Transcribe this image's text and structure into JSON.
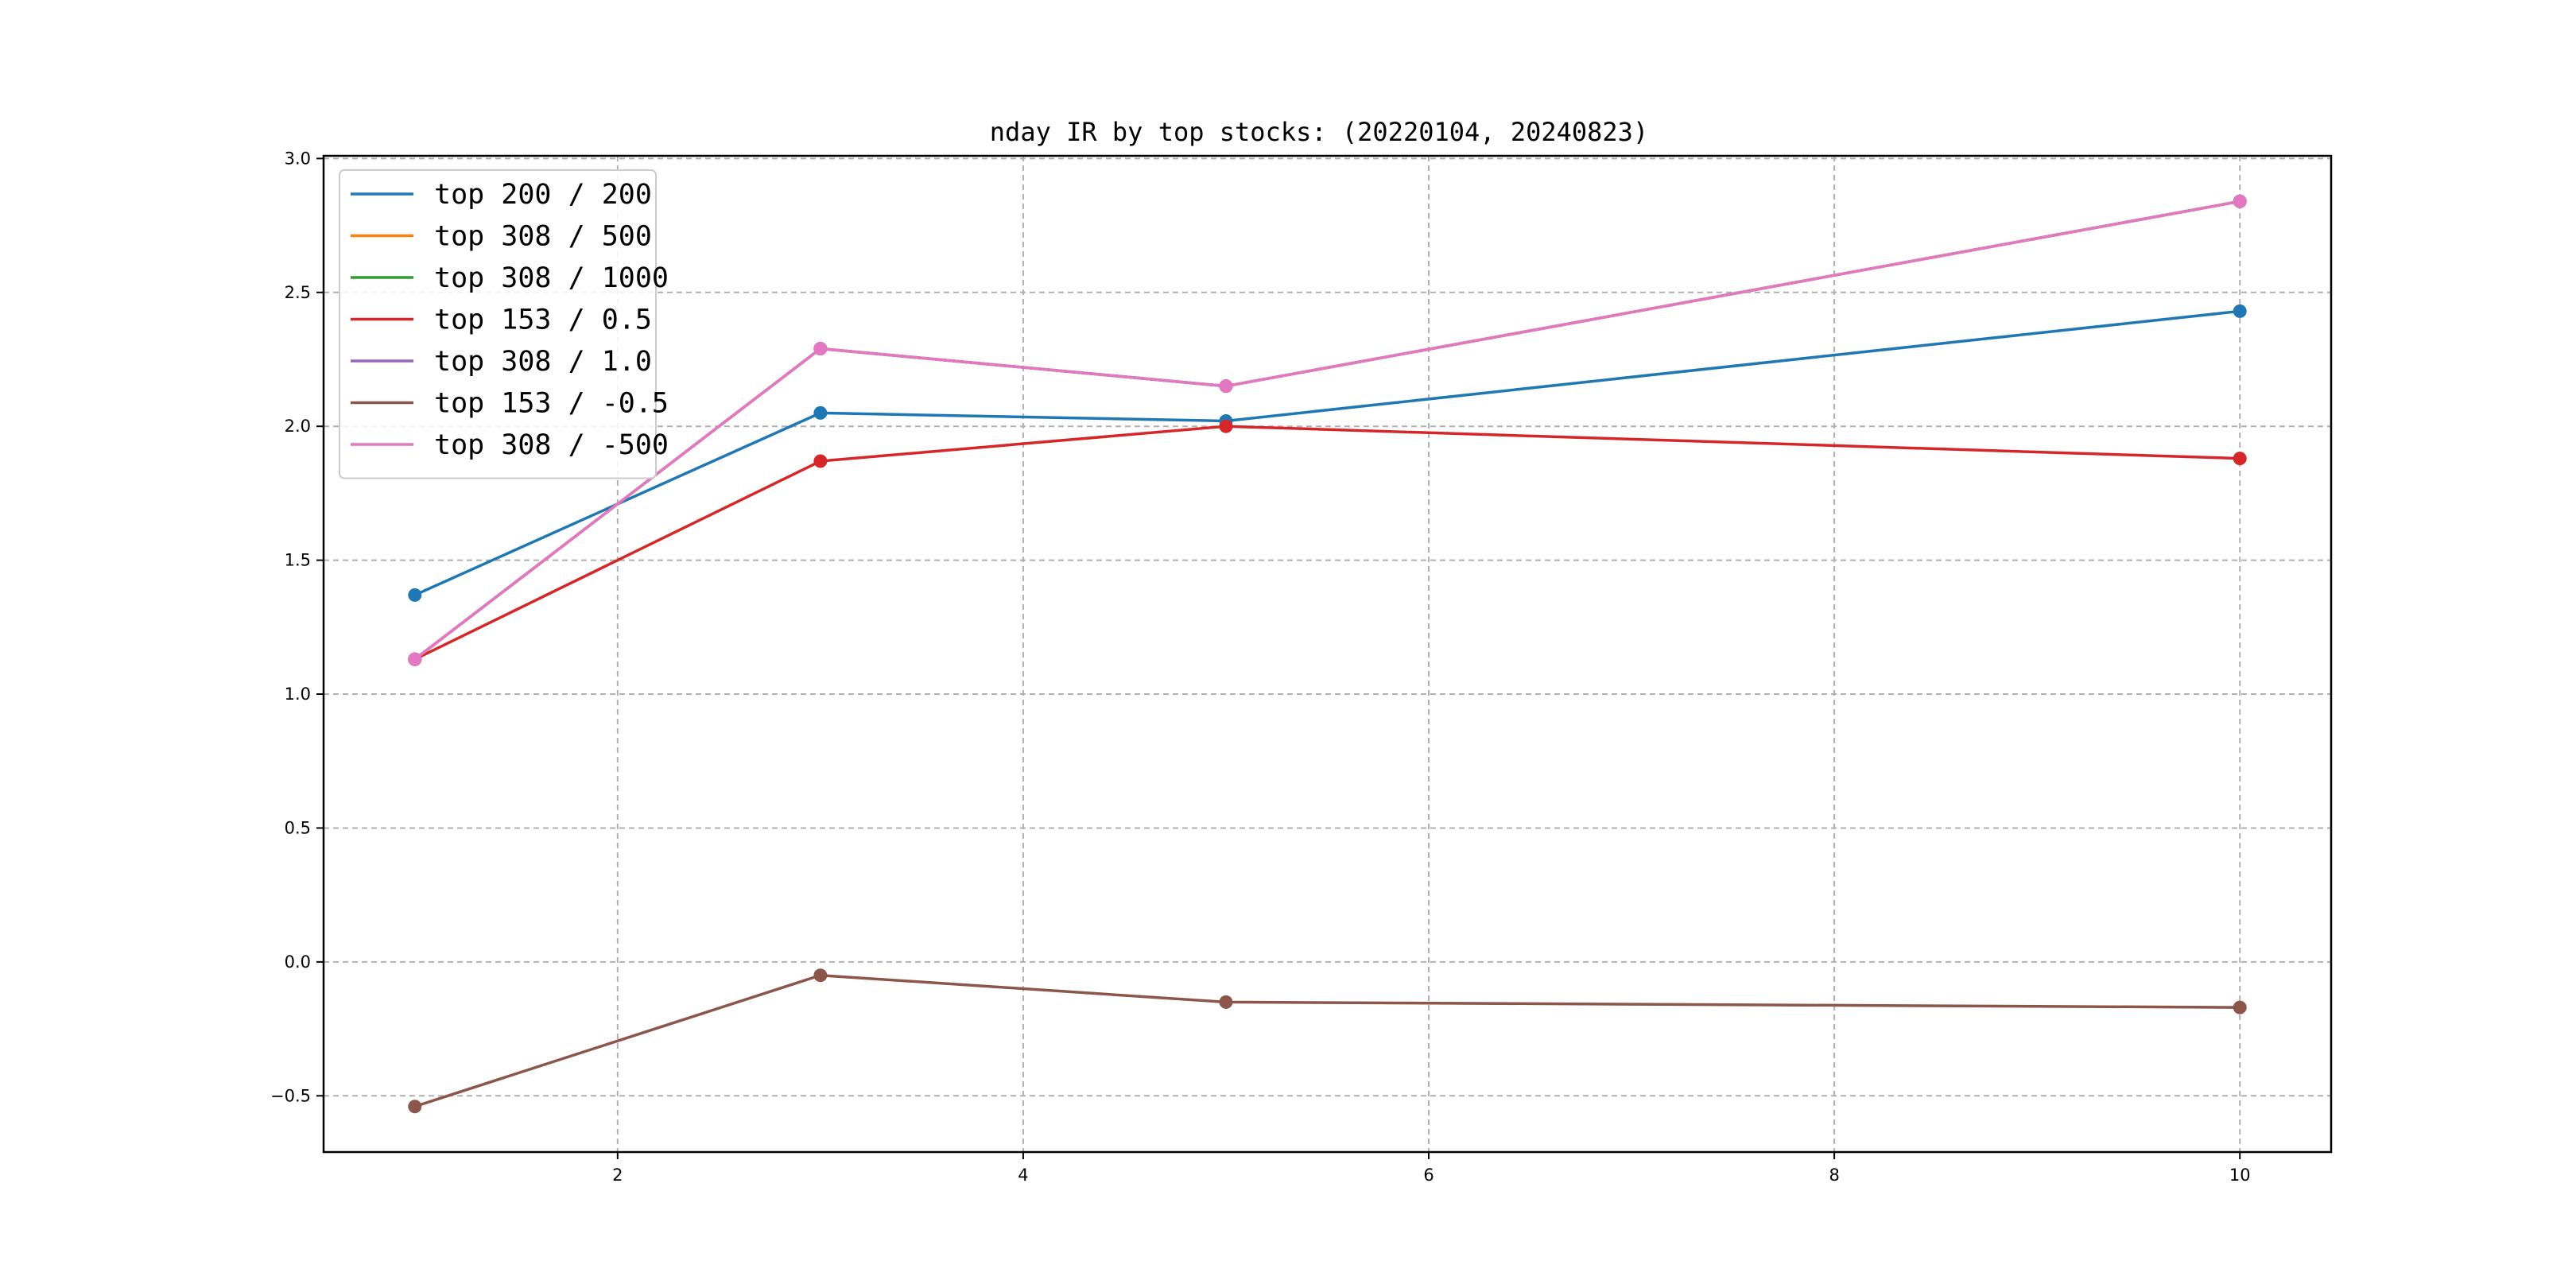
{
  "chart_data": {
    "type": "line",
    "title": "nday IR by top stocks: (20220104, 20240823)",
    "xlabel": "",
    "ylabel": "",
    "x": [
      1,
      3,
      5,
      10
    ],
    "xlim": [
      0.55,
      10.45
    ],
    "ylim": [
      -0.71,
      3.01
    ],
    "xticks": [
      2,
      4,
      6,
      8,
      10
    ],
    "yticks": [
      -0.5,
      0.0,
      0.5,
      1.0,
      1.5,
      2.0,
      2.5,
      3.0
    ],
    "grid": true,
    "legend_position": "top-left",
    "series": [
      {
        "name": "top 200 / 200",
        "color": "#1f77b4",
        "values": [
          1.37,
          2.05,
          2.02,
          2.43
        ]
      },
      {
        "name": "top 308 / 500",
        "color": "#ff7f0e",
        "values": [
          1.13,
          2.29,
          2.15,
          2.84
        ]
      },
      {
        "name": "top 308 / 1000",
        "color": "#2ca02c",
        "values": [
          1.13,
          2.29,
          2.15,
          2.84
        ]
      },
      {
        "name": "top 153 / 0.5",
        "color": "#d62728",
        "values": [
          1.13,
          1.87,
          2.0,
          1.88
        ]
      },
      {
        "name": "top 308 / 1.0",
        "color": "#9467bd",
        "values": [
          1.13,
          2.29,
          2.15,
          2.84
        ]
      },
      {
        "name": "top 153 / -0.5",
        "color": "#8c564b",
        "values": [
          -0.54,
          -0.05,
          -0.15,
          -0.17
        ]
      },
      {
        "name": "top 308 / -500",
        "color": "#e377c2",
        "values": [
          1.13,
          2.29,
          2.15,
          2.84
        ]
      }
    ]
  }
}
